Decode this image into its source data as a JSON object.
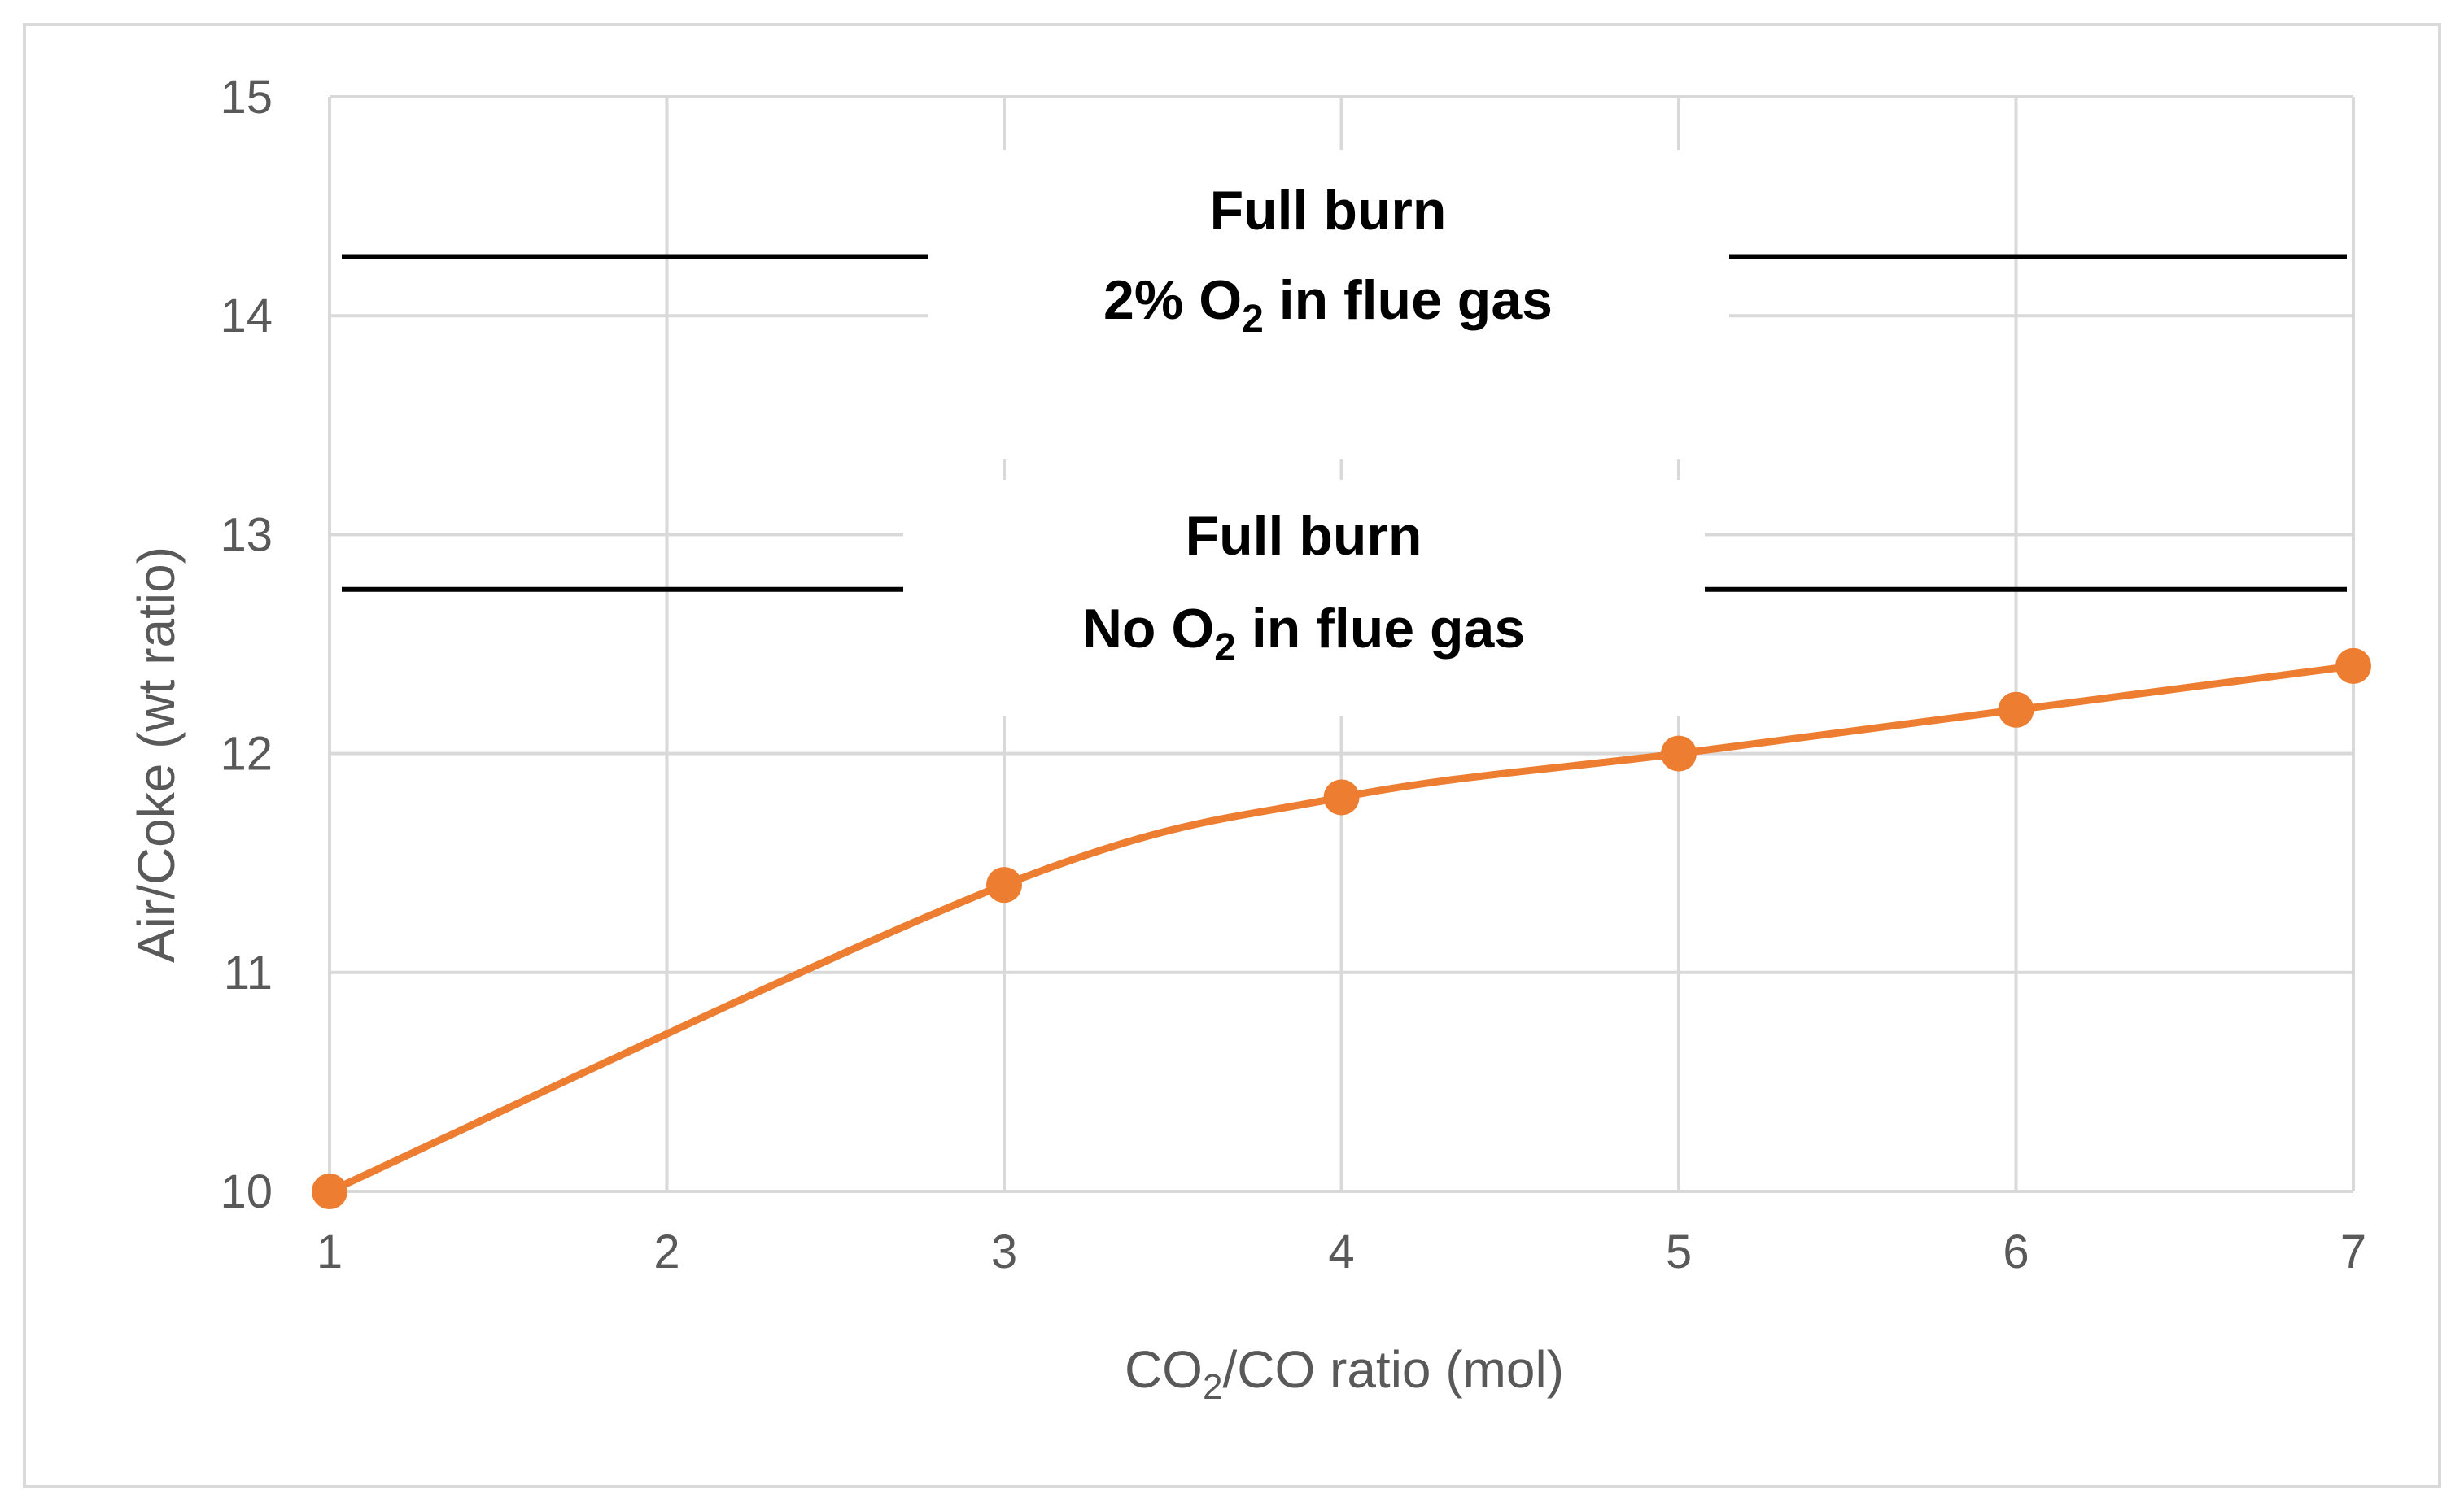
{
  "chart_data": {
    "type": "line",
    "title": "",
    "xlabel": {
      "pre": "CO",
      "sub": "2",
      "post": "/CO ratio (mol)"
    },
    "ylabel": "Air/Coke (wt ratio)",
    "xlim": [
      1,
      7
    ],
    "ylim": [
      10,
      15
    ],
    "xticks": [
      "1",
      "2",
      "3",
      "4",
      "5",
      "6",
      "7"
    ],
    "yticks": [
      "10",
      "11",
      "12",
      "13",
      "14",
      "15"
    ],
    "grid": true,
    "series": [
      {
        "name": "Air/Coke",
        "color": "#ED7D31",
        "x": [
          1,
          3,
          4,
          5,
          6,
          7
        ],
        "y": [
          10.0,
          11.4,
          11.8,
          12.0,
          12.2,
          12.4
        ]
      }
    ],
    "reference_lines": [
      {
        "y": 14.27,
        "label_line1": "Full burn",
        "label_line2": {
          "pre": "2% O",
          "sub": "2",
          "post": " in flue gas"
        }
      },
      {
        "y": 12.75,
        "label_line1": "Full burn",
        "label_line2": {
          "pre": "No O",
          "sub": "2",
          "post": " in flue gas"
        }
      }
    ],
    "colors": {
      "grid": "#D9D9D9",
      "axis_text": "#595959",
      "reference": "#000000",
      "border": "#D9D9D9"
    }
  }
}
